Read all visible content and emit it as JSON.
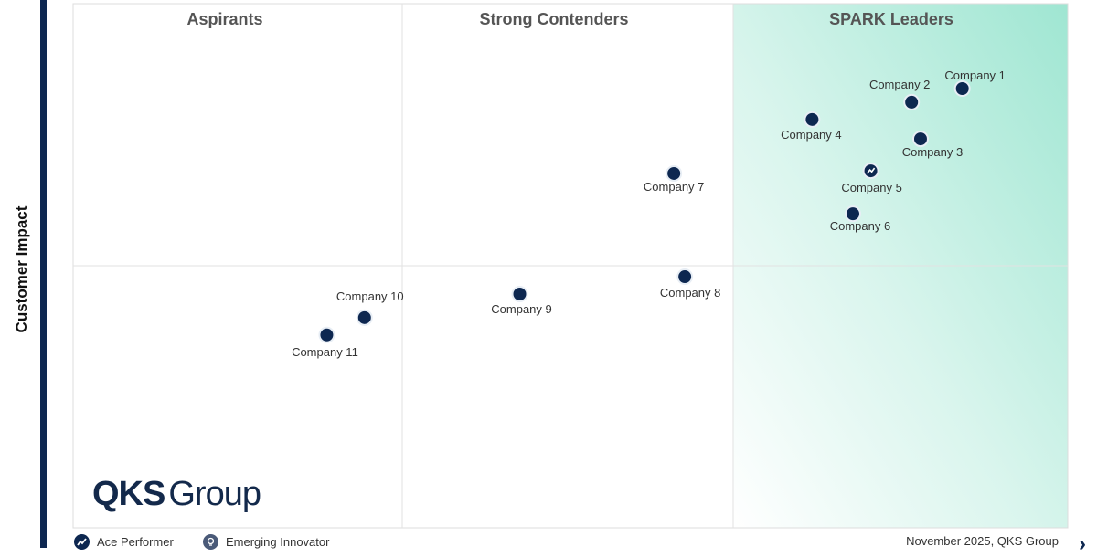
{
  "chart_data": {
    "type": "scatter",
    "ylabel": "Customer Impact",
    "xlim": [
      0,
      100
    ],
    "ylim": [
      0,
      100
    ],
    "grid": true,
    "quadrants": [
      "Aspirants",
      "Strong Contenders",
      "SPARK Leaders"
    ],
    "points": [
      {
        "name": "Company 1",
        "x": 89.4,
        "y": 83.8,
        "marker": "default"
      },
      {
        "name": "Company 2",
        "x": 84.3,
        "y": 81.2,
        "marker": "default"
      },
      {
        "name": "Company 3",
        "x": 85.2,
        "y": 74.2,
        "marker": "default"
      },
      {
        "name": "Company 4",
        "x": 74.3,
        "y": 77.9,
        "marker": "default"
      },
      {
        "name": "Company 5",
        "x": 80.2,
        "y": 68.1,
        "marker": "ace-performer"
      },
      {
        "name": "Company 6",
        "x": 78.4,
        "y": 59.9,
        "marker": "default"
      },
      {
        "name": "Company 7",
        "x": 60.4,
        "y": 67.6,
        "marker": "default"
      },
      {
        "name": "Company 8",
        "x": 61.5,
        "y": 47.9,
        "marker": "default"
      },
      {
        "name": "Company 9",
        "x": 44.9,
        "y": 44.6,
        "marker": "default"
      },
      {
        "name": "Company 10",
        "x": 29.3,
        "y": 40.1,
        "marker": "default"
      },
      {
        "name": "Company 11",
        "x": 25.5,
        "y": 36.8,
        "marker": "default"
      }
    ],
    "legend": [
      {
        "label": "Ace Performer",
        "icon": "trend-up-icon"
      },
      {
        "label": "Emerging Innovator",
        "icon": "lightbulb-icon"
      }
    ],
    "legend_position": "bottom-left",
    "colors": {
      "marker": "#0d2750",
      "leader_gradient": "#9fe6d2"
    }
  },
  "logo": {
    "bold": "QKS",
    "light": "Group"
  },
  "footer": "November 2025, QKS Group"
}
